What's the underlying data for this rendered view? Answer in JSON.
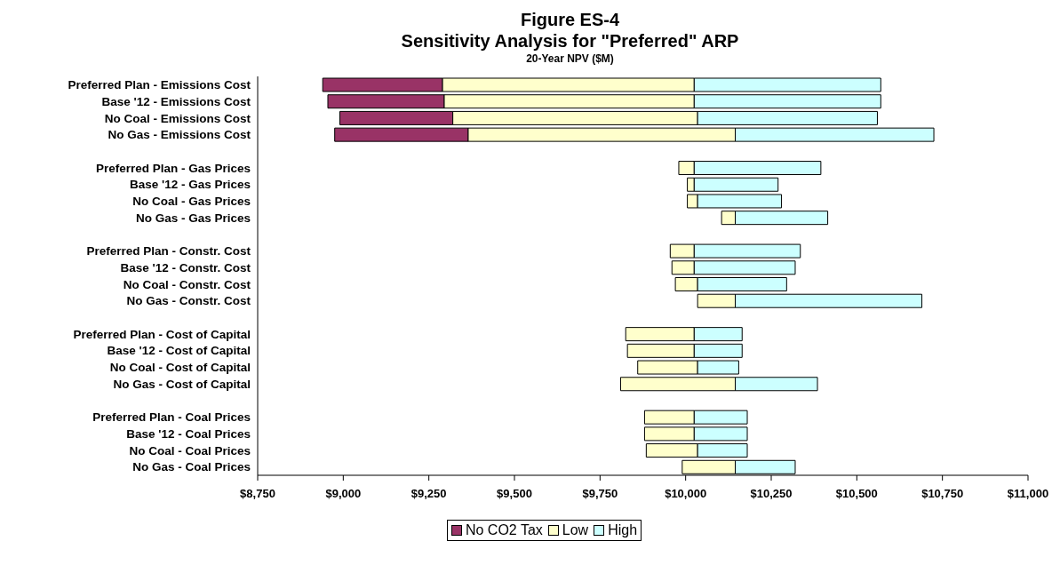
{
  "chart_data": {
    "type": "bar",
    "orientation": "horizontal",
    "title": "Figure ES-4\nSensitivity Analysis for \"Preferred\" ARP",
    "subtitle": "20-Year NPV ($M)",
    "categories": [
      "Preferred Plan - Emissions Cost",
      "Base '12 - Emissions Cost",
      "No Coal - Emissions Cost",
      "No Gas - Emissions Cost",
      null,
      "Preferred Plan - Gas Prices",
      "Base '12 - Gas Prices",
      "No Coal - Gas Prices",
      "No Gas - Gas Prices",
      null,
      "Preferred Plan - Constr. Cost",
      "Base '12 - Constr. Cost",
      "No Coal - Constr. Cost",
      "No Gas - Constr. Cost",
      null,
      "Preferred Plan - Cost of Capital",
      "Base '12 - Cost of Capital",
      "No Coal - Cost of Capital",
      "No Gas - Cost of Capital",
      null,
      "Preferred Plan - Coal Prices",
      "Base '12 - Coal Prices",
      "No Coal - Coal Prices",
      "No Gas - Coal Prices"
    ],
    "series": [
      {
        "name": "No CO2 Tax",
        "color": "#993366",
        "base": [
          8940,
          8955,
          8990,
          8975,
          null,
          null,
          null,
          null,
          null,
          null,
          null,
          null,
          null,
          null,
          null,
          null,
          null,
          null,
          null,
          null,
          null,
          null,
          null,
          null
        ],
        "values": [
          350,
          340,
          330,
          390,
          null,
          null,
          null,
          null,
          null,
          null,
          null,
          null,
          null,
          null,
          null,
          null,
          null,
          null,
          null,
          null,
          null,
          null,
          null,
          null
        ]
      },
      {
        "name": "Low",
        "color": "#ffffcc",
        "base": [
          9290,
          9295,
          9320,
          9365,
          null,
          9980,
          10005,
          10005,
          10105,
          null,
          9955,
          9960,
          9970,
          10035,
          null,
          9825,
          9830,
          9860,
          9810,
          null,
          9880,
          9880,
          9885,
          9990
        ],
        "values": [
          735,
          730,
          715,
          780,
          null,
          45,
          20,
          30,
          40,
          null,
          70,
          65,
          65,
          110,
          null,
          200,
          195,
          175,
          335,
          null,
          145,
          145,
          150,
          155
        ]
      },
      {
        "name": "High",
        "color": "#ccffff",
        "base": [
          10025,
          10025,
          10035,
          10145,
          null,
          10025,
          10025,
          10035,
          10145,
          null,
          10025,
          10025,
          10035,
          10145,
          null,
          10025,
          10025,
          10035,
          10145,
          null,
          10025,
          10025,
          10035,
          10145
        ],
        "values": [
          545,
          545,
          525,
          580,
          null,
          370,
          245,
          245,
          270,
          null,
          310,
          295,
          260,
          545,
          null,
          140,
          140,
          120,
          240,
          null,
          155,
          155,
          145,
          175
        ]
      }
    ],
    "xlim": [
      8750,
      11000
    ],
    "xticks": [
      {
        "value": 8750,
        "label": "$8,750"
      },
      {
        "value": 9000,
        "label": "$9,000"
      },
      {
        "value": 9250,
        "label": "$9,250"
      },
      {
        "value": 9500,
        "label": "$9,500"
      },
      {
        "value": 9750,
        "label": "$9,750"
      },
      {
        "value": 10000,
        "label": "$10,000"
      },
      {
        "value": 10250,
        "label": "$10,250"
      },
      {
        "value": 10500,
        "label": "$10,500"
      },
      {
        "value": 10750,
        "label": "$10,750"
      },
      {
        "value": 11000,
        "label": "$11,000"
      }
    ],
    "legend": "bottom"
  }
}
